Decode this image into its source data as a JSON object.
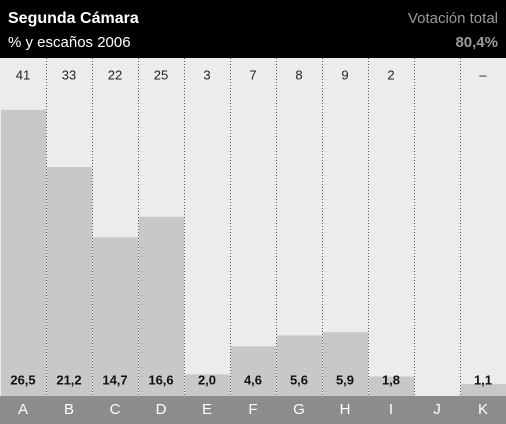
{
  "chart_data": {
    "type": "bar",
    "title": "Segunda Cámara",
    "subtitle": "% y escaños 2006",
    "total_label": "Votación total",
    "total_value": "80,4%",
    "categories": [
      "A",
      "B",
      "C",
      "D",
      "E",
      "F",
      "G",
      "H",
      "I",
      "J",
      "K"
    ],
    "values": [
      26.5,
      21.2,
      14.7,
      16.6,
      2.0,
      4.6,
      5.6,
      5.9,
      1.8,
      null,
      1.1
    ],
    "value_labels": [
      "26,5",
      "21,2",
      "14,7",
      "16,6",
      "2,0",
      "4,6",
      "5,6",
      "5,9",
      "1,8",
      null,
      "1,1"
    ],
    "seats": [
      41,
      33,
      22,
      25,
      3,
      7,
      8,
      9,
      2,
      null,
      "–"
    ],
    "color": "#c8c8c8"
  }
}
